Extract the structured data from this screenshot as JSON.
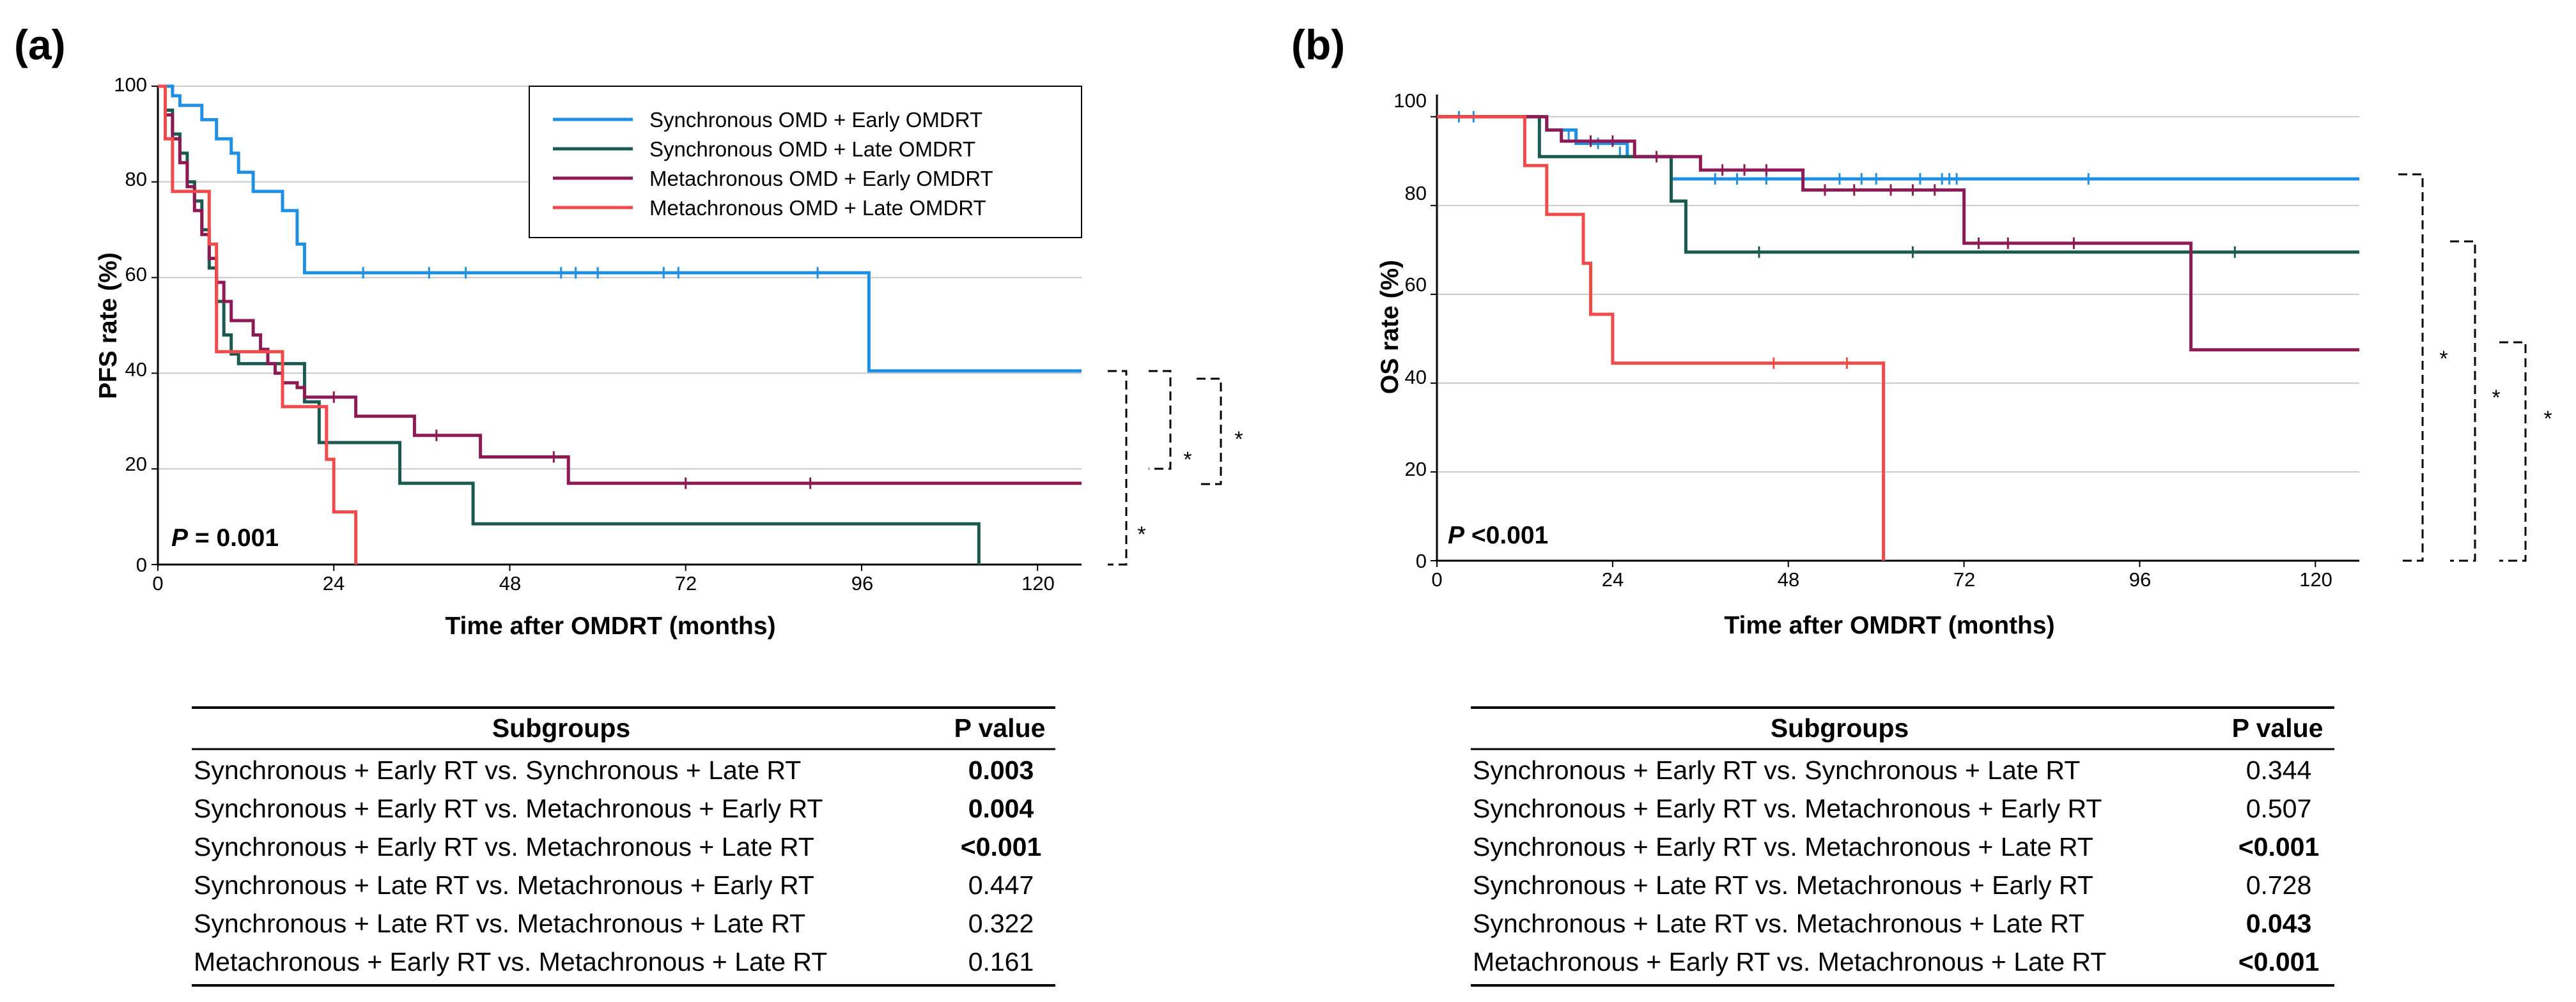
{
  "chart_data": [
    {
      "type": "line",
      "panel_label": "(a)",
      "ylabel": "PFS rate (%)",
      "xlabel": "Time after OMDRT (months)",
      "xlim": [
        0,
        126
      ],
      "ylim": [
        0,
        100
      ],
      "xticks": [
        "0",
        "24",
        "48",
        "72",
        "96",
        "120"
      ],
      "yticks": [
        "0",
        "20",
        "40",
        "60",
        "80",
        "100"
      ],
      "grid": "horizontal",
      "legend_position": "top-right",
      "p_label": "P",
      "p_value": " = 0.001",
      "significance_marks": [
        "*",
        "*",
        "*"
      ],
      "series": [
        {
          "name": "Synchronous  OMD + Early OMDRT",
          "color": "#1f8fe3",
          "steps": [
            [
              0,
              100
            ],
            [
              2,
              98
            ],
            [
              3,
              96
            ],
            [
              6,
              93
            ],
            [
              8,
              89
            ],
            [
              10,
              86
            ],
            [
              11,
              82
            ],
            [
              13,
              78
            ],
            [
              17,
              74
            ],
            [
              19,
              67
            ],
            [
              20,
              61
            ],
            [
              97,
              61
            ],
            [
              97,
              40.5
            ],
            [
              126,
              40.5
            ]
          ],
          "censors": [
            [
              28,
              61
            ],
            [
              37,
              61
            ],
            [
              42,
              61
            ],
            [
              55,
              61
            ],
            [
              57,
              61
            ],
            [
              60,
              61
            ],
            [
              69,
              61
            ],
            [
              71,
              61
            ],
            [
              90,
              61
            ]
          ]
        },
        {
          "name": "Synchronous  OMD + Late OMDRT",
          "color": "#1b5a50",
          "steps": [
            [
              0,
              100
            ],
            [
              1,
              95
            ],
            [
              2,
              90
            ],
            [
              3,
              86
            ],
            [
              4,
              80
            ],
            [
              5,
              76
            ],
            [
              6,
              70
            ],
            [
              7,
              62
            ],
            [
              8,
              55
            ],
            [
              9,
              48
            ],
            [
              10,
              44
            ],
            [
              11,
              42
            ],
            [
              20,
              42
            ],
            [
              20,
              34
            ],
            [
              22,
              25.5
            ],
            [
              33,
              25.5
            ],
            [
              33,
              17
            ],
            [
              43,
              17
            ],
            [
              43,
              8.5
            ],
            [
              112,
              8.5
            ],
            [
              112,
              0
            ]
          ],
          "censors": []
        },
        {
          "name": "Metachronous  OMD + Early OMDRT",
          "color": "#8d1a54",
          "steps": [
            [
              0,
              100
            ],
            [
              1,
              94
            ],
            [
              2,
              89
            ],
            [
              3,
              84
            ],
            [
              4,
              79
            ],
            [
              5,
              74
            ],
            [
              6,
              69
            ],
            [
              7,
              64
            ],
            [
              8,
              59
            ],
            [
              9,
              55
            ],
            [
              10,
              51
            ],
            [
              13,
              48
            ],
            [
              14,
              45
            ],
            [
              15,
              42
            ],
            [
              16,
              40
            ],
            [
              17,
              38
            ],
            [
              19,
              37
            ],
            [
              20,
              35
            ],
            [
              26,
              35
            ],
            [
              27,
              31
            ],
            [
              34,
              31
            ],
            [
              35,
              27
            ],
            [
              43,
              27
            ],
            [
              44,
              22.5
            ],
            [
              54,
              22.5
            ],
            [
              56,
              17
            ],
            [
              126,
              17
            ]
          ],
          "censors": [
            [
              24,
              35
            ],
            [
              38,
              27
            ],
            [
              54,
              22.5
            ],
            [
              72,
              17
            ],
            [
              89,
              17
            ]
          ]
        },
        {
          "name": "Metachronous  OMD + Late OMDRT",
          "color": "#f04a4a",
          "steps": [
            [
              0,
              100
            ],
            [
              1,
              89
            ],
            [
              2,
              78
            ],
            [
              6,
              78
            ],
            [
              7,
              67
            ],
            [
              8,
              44.5
            ],
            [
              17,
              44.5
            ],
            [
              17,
              33
            ],
            [
              22,
              33
            ],
            [
              23,
              22
            ],
            [
              24,
              11
            ],
            [
              27,
              11
            ],
            [
              27,
              0
            ]
          ],
          "censors": []
        }
      ]
    },
    {
      "type": "line",
      "panel_label": "(b)",
      "ylabel": "OS rate (%)",
      "xlabel": "Time after OMDRT (months)",
      "xlim": [
        0,
        126
      ],
      "ylim": [
        0,
        105
      ],
      "xticks": [
        "0",
        "24",
        "48",
        "72",
        "96",
        "120"
      ],
      "yticks": [
        "0",
        "20",
        "40",
        "60",
        "80",
        "100"
      ],
      "grid": "horizontal",
      "p_label": "P",
      "p_value": " <0.001",
      "significance_marks": [
        "*",
        "*",
        "*"
      ],
      "series": [
        {
          "name": "Synchronous  OMD + Early OMDRT",
          "color": "#1f8fe3",
          "steps": [
            [
              0,
              100
            ],
            [
              15,
              100
            ],
            [
              15,
              97
            ],
            [
              19,
              97
            ],
            [
              19,
              94
            ],
            [
              26,
              94
            ],
            [
              26,
              91
            ],
            [
              32,
              91
            ],
            [
              32,
              86
            ],
            [
              126,
              86
            ]
          ],
          "censors": [
            [
              3,
              100
            ],
            [
              5,
              100
            ],
            [
              18,
              96
            ],
            [
              22,
              94
            ],
            [
              25,
              92
            ],
            [
              38,
              86
            ],
            [
              41,
              86
            ],
            [
              45,
              86
            ],
            [
              55,
              86
            ],
            [
              58,
              86
            ],
            [
              60,
              86
            ],
            [
              66,
              86
            ],
            [
              69,
              86
            ],
            [
              70,
              86
            ],
            [
              71,
              86
            ],
            [
              89,
              86
            ]
          ]
        },
        {
          "name": "Synchronous  OMD + Late OMDRT",
          "color": "#1b5a50",
          "steps": [
            [
              0,
              100
            ],
            [
              14,
              100
            ],
            [
              14,
              91
            ],
            [
              32,
              91
            ],
            [
              32,
              81
            ],
            [
              34,
              81
            ],
            [
              34,
              69.5
            ],
            [
              126,
              69.5
            ]
          ],
          "censors": [
            [
              44,
              69.5
            ],
            [
              65,
              69.5
            ],
            [
              109,
              69.5
            ]
          ]
        },
        {
          "name": "Metachronous  OMD + Early OMDRT",
          "color": "#8d1a54",
          "steps": [
            [
              0,
              100
            ],
            [
              15,
              100
            ],
            [
              15,
              97
            ],
            [
              17,
              97
            ],
            [
              17,
              94.5
            ],
            [
              27,
              94.5
            ],
            [
              27,
              91
            ],
            [
              36,
              91
            ],
            [
              36,
              88
            ],
            [
              50,
              88
            ],
            [
              50,
              83.5
            ],
            [
              72,
              83.5
            ],
            [
              72,
              71.5
            ],
            [
              103,
              71.5
            ],
            [
              103,
              47.5
            ],
            [
              126,
              47.5
            ]
          ],
          "censors": [
            [
              21,
              94.5
            ],
            [
              24,
              94.5
            ],
            [
              30,
              91
            ],
            [
              39,
              88
            ],
            [
              42,
              88
            ],
            [
              45,
              88
            ],
            [
              53,
              83.5
            ],
            [
              57,
              83.5
            ],
            [
              62,
              83.5
            ],
            [
              65,
              83.5
            ],
            [
              68,
              83.5
            ],
            [
              74,
              71.5
            ],
            [
              78,
              71.5
            ],
            [
              87,
              71.5
            ]
          ]
        },
        {
          "name": "Metachronous  OMD + Late OMDRT",
          "color": "#f04a4a",
          "steps": [
            [
              0,
              100
            ],
            [
              12,
              100
            ],
            [
              12,
              89
            ],
            [
              15,
              89
            ],
            [
              15,
              78
            ],
            [
              20,
              78
            ],
            [
              20,
              67
            ],
            [
              21,
              67
            ],
            [
              21,
              55.5
            ],
            [
              24,
              55.5
            ],
            [
              24,
              44.5
            ],
            [
              61,
              44.5
            ],
            [
              61,
              0
            ]
          ],
          "censors": [
            [
              46,
              44.5
            ],
            [
              56,
              44.5
            ]
          ]
        }
      ]
    }
  ],
  "tables": [
    {
      "header": {
        "subgroup": "Subgroups",
        "p": "P value"
      },
      "rows": [
        {
          "label": "Synchronous + Early RT vs. Synchronous + Late RT",
          "p": "0.003",
          "bold": true
        },
        {
          "label": "Synchronous + Early RT vs. Metachronous + Early RT",
          "p": "0.004",
          "bold": true
        },
        {
          "label": "Synchronous + Early RT vs. Metachronous + Late RT",
          "p": "<0.001",
          "bold": true
        },
        {
          "label": "Synchronous + Late RT vs. Metachronous + Early RT",
          "p": "0.447",
          "bold": false
        },
        {
          "label": "Synchronous + Late RT vs. Metachronous + Late RT",
          "p": "0.322",
          "bold": false
        },
        {
          "label": "Metachronous + Early RT vs. Metachronous + Late RT",
          "p": "0.161",
          "bold": false
        }
      ]
    },
    {
      "header": {
        "subgroup": "Subgroups",
        "p": "P value"
      },
      "rows": [
        {
          "label": "Synchronous + Early RT vs. Synchronous + Late RT",
          "p": "0.344",
          "bold": false
        },
        {
          "label": "Synchronous + Early RT vs. Metachronous + Early RT",
          "p": "0.507",
          "bold": false
        },
        {
          "label": "Synchronous + Early RT vs. Metachronous + Late RT",
          "p": "<0.001",
          "bold": true
        },
        {
          "label": "Synchronous + Late RT vs. Metachronous + Early RT",
          "p": "0.728",
          "bold": false
        },
        {
          "label": "Synchronous + Late RT vs. Metachronous + Late RT",
          "p": "0.043",
          "bold": true
        },
        {
          "label": "Metachronous + Early RT vs. Metachronous + Late RT",
          "p": "<0.001",
          "bold": true
        }
      ]
    }
  ]
}
